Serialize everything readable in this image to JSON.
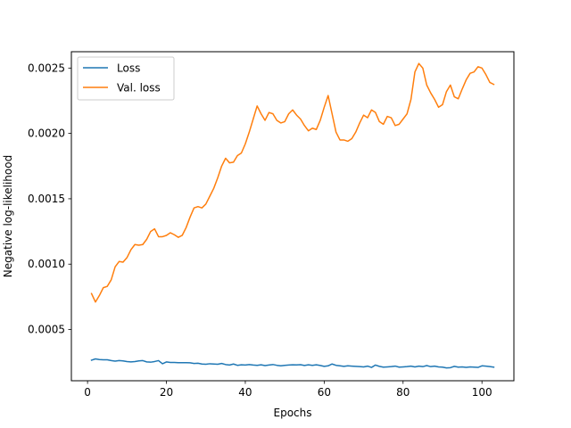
{
  "chart_data": {
    "type": "line",
    "title": "",
    "xlabel": "Epochs",
    "ylabel": "Negative log-likelihood",
    "xlim": [
      -4.1,
      108.1
    ],
    "ylim": [
      0.000108,
      0.002625
    ],
    "xticks": [
      0,
      20,
      40,
      60,
      80,
      100
    ],
    "xtick_labels": [
      "0",
      "20",
      "40",
      "60",
      "80",
      "100"
    ],
    "yticks": [
      0.0005,
      0.001,
      0.0015,
      0.002,
      0.0025
    ],
    "ytick_labels": [
      "0.0005",
      "0.0010",
      "0.0015",
      "0.0020",
      "0.0025"
    ],
    "grid": false,
    "legend_position": "upper left",
    "x": [
      1,
      2,
      3,
      4,
      5,
      6,
      7,
      8,
      9,
      10,
      11,
      12,
      13,
      14,
      15,
      16,
      17,
      18,
      19,
      20,
      21,
      22,
      23,
      24,
      25,
      26,
      27,
      28,
      29,
      30,
      31,
      32,
      33,
      34,
      35,
      36,
      37,
      38,
      39,
      40,
      41,
      42,
      43,
      44,
      45,
      46,
      47,
      48,
      49,
      50,
      51,
      52,
      53,
      54,
      55,
      56,
      57,
      58,
      59,
      60,
      61,
      62,
      63,
      64,
      65,
      66,
      67,
      68,
      69,
      70,
      71,
      72,
      73,
      74,
      75,
      76,
      77,
      78,
      79,
      80,
      81,
      82,
      83,
      84,
      85,
      86,
      87,
      88,
      89,
      90,
      91,
      92,
      93,
      94,
      95,
      96,
      97,
      98,
      99,
      100,
      101,
      102,
      103
    ],
    "series": [
      {
        "name": "Loss",
        "color": "#1f77b4",
        "values": [
          0.000265,
          0.000275,
          0.00027,
          0.000268,
          0.000268,
          0.000262,
          0.000258,
          0.000262,
          0.00026,
          0.000255,
          0.000252,
          0.000255,
          0.00026,
          0.000262,
          0.000252,
          0.00025,
          0.000255,
          0.000262,
          0.000238,
          0.000252,
          0.000248,
          0.000248,
          0.000246,
          0.000246,
          0.000246,
          0.000245,
          0.00024,
          0.000242,
          0.000236,
          0.000234,
          0.000238,
          0.000236,
          0.000234,
          0.00024,
          0.000232,
          0.000228,
          0.000236,
          0.000226,
          0.00023,
          0.000228,
          0.000232,
          0.000228,
          0.000226,
          0.00023,
          0.000224,
          0.000228,
          0.000232,
          0.000226,
          0.000222,
          0.000226,
          0.000228,
          0.00023,
          0.000229,
          0.000231,
          0.000225,
          0.00023,
          0.000226,
          0.00023,
          0.000225,
          0.000218,
          0.000222,
          0.000236,
          0.000226,
          0.000222,
          0.000218,
          0.000222,
          0.00022,
          0.000218,
          0.000216,
          0.000214,
          0.00022,
          0.00021,
          0.000228,
          0.000218,
          0.000212,
          0.000214,
          0.000216,
          0.00022,
          0.000212,
          0.000214,
          0.000216,
          0.00022,
          0.000214,
          0.00022,
          0.000216,
          0.000224,
          0.000216,
          0.00022,
          0.000214,
          0.000212,
          0.000206,
          0.000208,
          0.000218,
          0.000212,
          0.000214,
          0.00021,
          0.000214,
          0.000212,
          0.00021,
          0.000222,
          0.00022,
          0.000216,
          0.000212
        ]
      },
      {
        "name": "Val. loss",
        "color": "#ff7f0e",
        "values": [
          0.000775,
          0.00071,
          0.00076,
          0.00082,
          0.00083,
          0.00088,
          0.00098,
          0.00102,
          0.001015,
          0.00105,
          0.00111,
          0.00115,
          0.001145,
          0.00115,
          0.00119,
          0.00125,
          0.00127,
          0.00121,
          0.00121,
          0.00122,
          0.00124,
          0.001225,
          0.001205,
          0.00122,
          0.00128,
          0.00136,
          0.00143,
          0.00144,
          0.00143,
          0.00146,
          0.00152,
          0.00158,
          0.00166,
          0.00175,
          0.00181,
          0.001775,
          0.00178,
          0.00183,
          0.00185,
          0.00192,
          0.00201,
          0.00211,
          0.00221,
          0.00215,
          0.0021,
          0.00216,
          0.00215,
          0.0021,
          0.00208,
          0.00209,
          0.00215,
          0.00218,
          0.00214,
          0.00211,
          0.00206,
          0.00202,
          0.00204,
          0.00203,
          0.0021,
          0.0022,
          0.00229,
          0.00215,
          0.00201,
          0.00195,
          0.00195,
          0.00194,
          0.00196,
          0.00201,
          0.00208,
          0.00214,
          0.00212,
          0.00218,
          0.00216,
          0.00209,
          0.00207,
          0.00213,
          0.00212,
          0.00206,
          0.00207,
          0.00211,
          0.00215,
          0.00226,
          0.00247,
          0.002535,
          0.0025,
          0.00237,
          0.00231,
          0.00226,
          0.0022,
          0.00222,
          0.00232,
          0.00237,
          0.00228,
          0.002265,
          0.00234,
          0.00241,
          0.00246,
          0.00247,
          0.00251,
          0.0025,
          0.00245,
          0.00239,
          0.002375
        ]
      }
    ]
  }
}
